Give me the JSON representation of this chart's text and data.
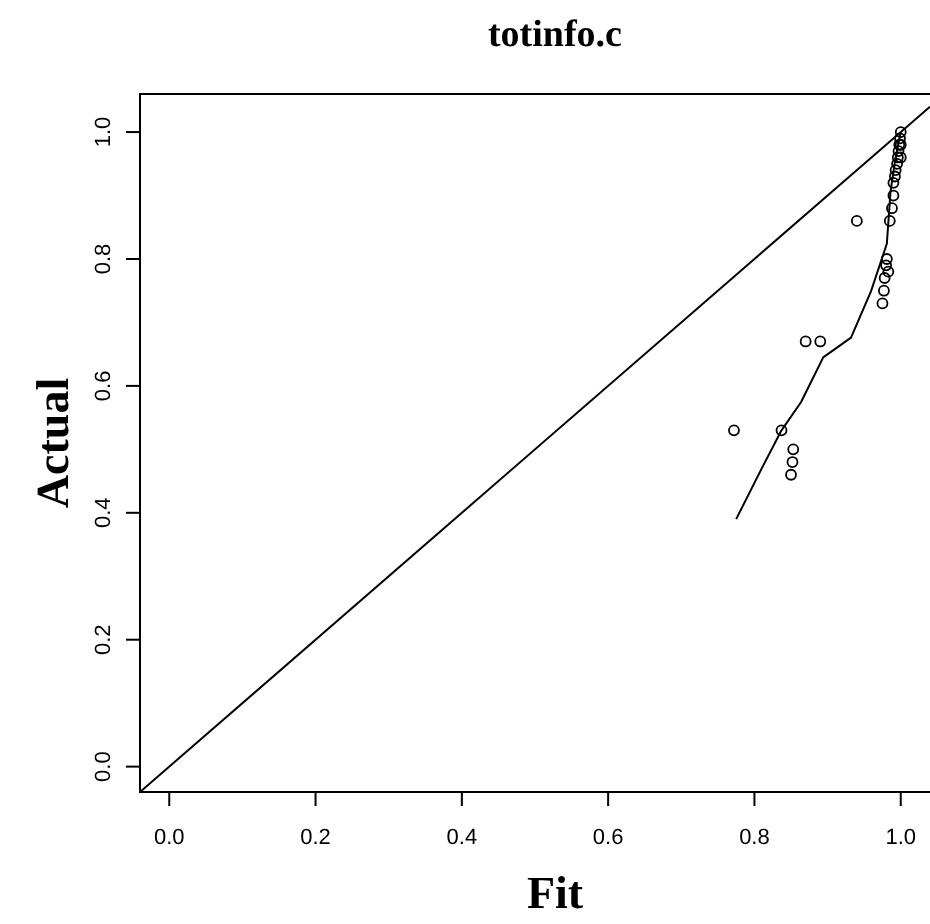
{
  "chart_data": {
    "type": "scatter",
    "title": "totinfo.c",
    "xlabel": "Fit",
    "ylabel": "Actual",
    "xlim": [
      -0.04,
      1.04
    ],
    "ylim": [
      -0.04,
      1.06
    ],
    "xticks": [
      {
        "value": 0,
        "label": "0.0"
      },
      {
        "value": 0.2,
        "label": "0.2"
      },
      {
        "value": 0.4,
        "label": "0.4"
      },
      {
        "value": 0.6,
        "label": "0.6"
      },
      {
        "value": 0.8,
        "label": "0.8"
      },
      {
        "value": 1,
        "label": "1.0"
      }
    ],
    "yticks": [
      {
        "value": 0,
        "label": "0.0"
      },
      {
        "value": 0.2,
        "label": "0.2"
      },
      {
        "value": 0.4,
        "label": "0.4"
      },
      {
        "value": 0.6,
        "label": "0.6"
      },
      {
        "value": 0.8,
        "label": "0.8"
      },
      {
        "value": 1,
        "label": "1.0"
      }
    ],
    "grid": false,
    "series": [
      {
        "marker": "circle",
        "color": "#000000",
        "x": [
          0.772,
          0.837,
          0.85,
          0.852,
          0.853,
          0.87,
          0.89,
          0.94,
          0.975,
          0.977,
          0.978,
          0.98,
          0.981,
          0.983,
          0.985,
          0.988,
          0.99,
          0.99,
          0.992,
          0.993,
          0.995,
          0.996,
          0.997,
          0.998,
          0.999,
          1.0,
          1.0,
          1.0
        ],
        "values": [
          0.53,
          0.53,
          0.46,
          0.48,
          0.5,
          0.67,
          0.67,
          0.86,
          0.73,
          0.75,
          0.77,
          0.79,
          0.8,
          0.78,
          0.86,
          0.88,
          0.9,
          0.92,
          0.93,
          0.94,
          0.95,
          0.96,
          0.97,
          0.98,
          0.99,
          0.96,
          0.98,
          1.0
        ]
      },
      {
        "type": "line",
        "color": "#000000",
        "x": [
          0.775,
          0.81,
          0.837,
          0.864,
          0.894,
          0.932,
          0.959,
          0.981,
          0.986,
          0.993,
          1.0
        ],
        "values": [
          0.39,
          0.47,
          0.53,
          0.575,
          0.645,
          0.676,
          0.748,
          0.824,
          0.906,
          0.96,
          1.0
        ]
      },
      {
        "type": "line",
        "color": "#000000",
        "x": [
          -0.04,
          1.04
        ],
        "values": [
          -0.04,
          1.04
        ]
      }
    ]
  }
}
